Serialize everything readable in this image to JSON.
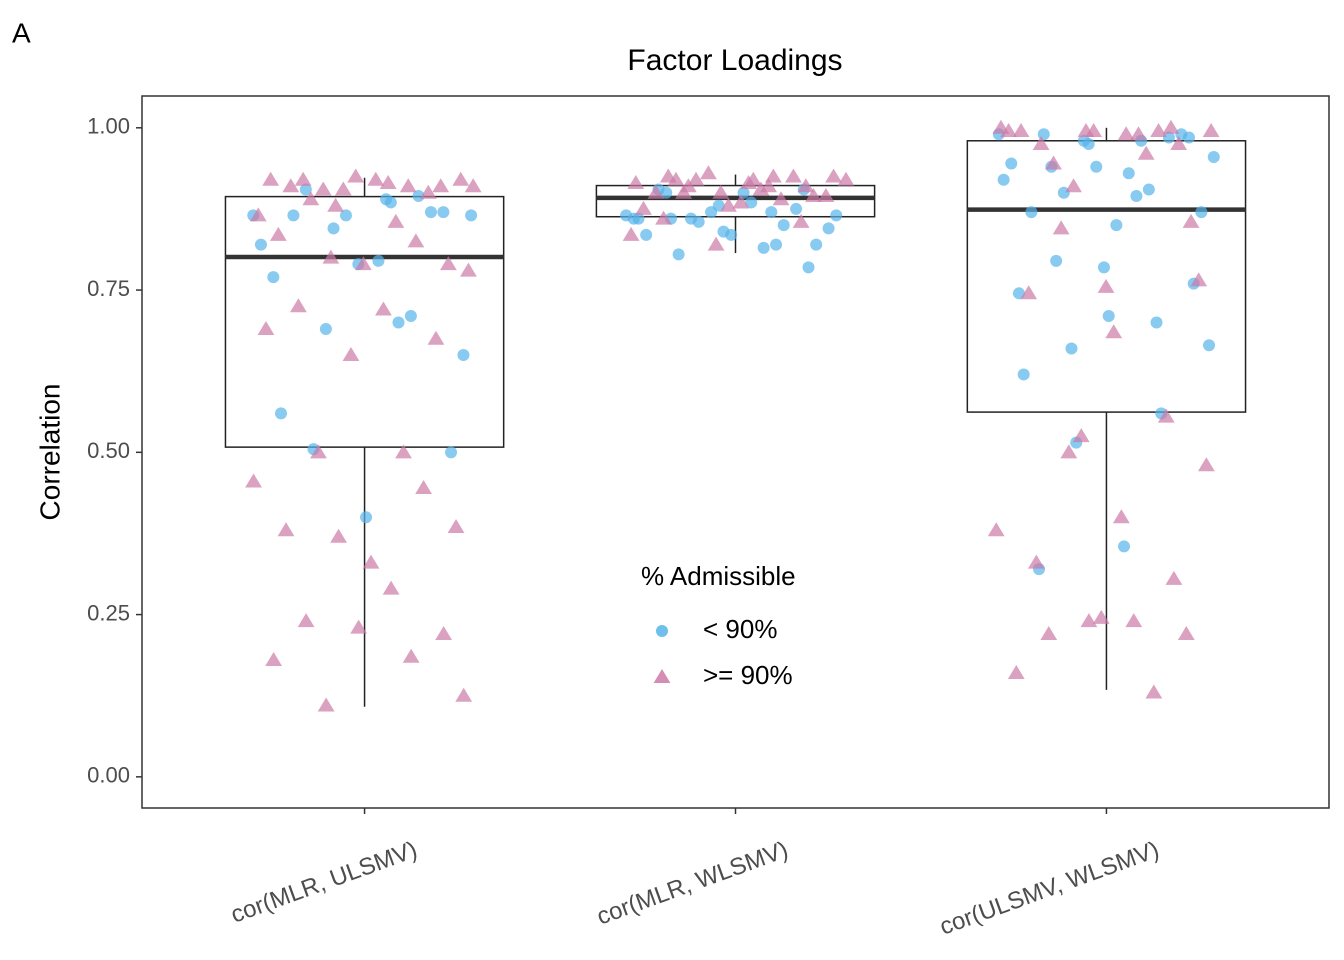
{
  "chart_data": {
    "type": "box",
    "panel_label": "A",
    "title": "Factor Loadings",
    "y_label": "Correlation",
    "categories": [
      "cor(MLR, ULSMV)",
      "cor(MLR, WLSMV)",
      "cor(ULSMV, WLSMV)"
    ],
    "ylim": [
      -0.048,
      1.049
    ],
    "yticks": [
      {
        "value": 0,
        "label": "0.00"
      },
      {
        "value": 0.25,
        "label": "0.25"
      },
      {
        "value": 0.5,
        "label": "0.50"
      },
      {
        "value": 0.75,
        "label": "0.75"
      },
      {
        "value": 1,
        "label": "1.00"
      }
    ],
    "grid": false,
    "boxes": [
      {
        "min": 0.108,
        "q1": 0.508,
        "median": 0.801,
        "q3": 0.894,
        "max": 0.923
      },
      {
        "min": 0.807,
        "q1": 0.863,
        "median": 0.892,
        "q3": 0.911,
        "max": 0.928
      },
      {
        "min": 0.134,
        "q1": 0.562,
        "median": 0.874,
        "q3": 0.98,
        "max": 1.0
      }
    ],
    "legend_title": "% Admissible",
    "series": [
      {
        "name": "< 90%",
        "color": "#56B4E9",
        "marker": "circle",
        "values": [
          [
            0.865,
            0.885,
            0.905,
            0.87,
            0.79,
            0.77,
            0.71,
            0.69,
            0.65,
            0.795,
            0.865,
            0.87,
            0.865,
            0.82,
            0.7,
            0.505,
            0.5,
            0.4,
            0.56,
            0.895,
            0.845,
            0.865,
            0.89
          ],
          [
            0.86,
            0.785,
            0.84,
            0.86,
            0.82,
            0.86,
            0.845,
            0.9,
            0.905,
            0.875,
            0.87,
            0.865,
            0.815,
            0.805,
            0.82,
            0.835,
            0.835,
            0.85,
            0.855,
            0.865,
            0.885,
            0.9,
            0.905,
            0.88,
            0.86,
            0.87
          ],
          [
            0.975,
            0.92,
            0.98,
            0.795,
            0.76,
            0.71,
            0.62,
            0.56,
            0.515,
            0.955,
            0.93,
            0.99,
            0.99,
            0.94,
            0.945,
            0.905,
            0.9,
            0.87,
            0.85,
            0.87,
            0.985,
            0.98,
            0.99,
            0.895,
            0.94,
            0.985,
            0.785,
            0.745,
            0.7,
            0.66,
            0.665,
            0.355,
            0.32
          ]
        ]
      },
      {
        "name": ">= 90%",
        "color": "#CC79A7",
        "marker": "triangle",
        "values": [
          [
            0.88,
            0.91,
            0.915,
            0.92,
            0.91,
            0.925,
            0.92,
            0.91,
            0.905,
            0.92,
            0.92,
            0.91,
            0.9,
            0.905,
            0.865,
            0.855,
            0.89,
            0.79,
            0.79,
            0.835,
            0.825,
            0.8,
            0.78,
            0.72,
            0.725,
            0.675,
            0.65,
            0.69,
            0.5,
            0.5,
            0.385,
            0.33,
            0.38,
            0.445,
            0.37,
            0.455,
            0.29,
            0.24,
            0.22,
            0.23,
            0.18,
            0.185,
            0.11,
            0.125
          ],
          [
            0.92,
            0.925,
            0.91,
            0.9,
            0.915,
            0.925,
            0.91,
            0.895,
            0.885,
            0.9,
            0.925,
            0.93,
            0.92,
            0.905,
            0.92,
            0.895,
            0.88,
            0.875,
            0.89,
            0.92,
            0.925,
            0.915,
            0.86,
            0.855,
            0.82,
            0.835,
            0.91,
            0.9
          ],
          [
            1.0,
            0.995,
            1.0,
            0.99,
            0.945,
            0.855,
            0.755,
            0.995,
            0.995,
            0.91,
            0.995,
            0.99,
            0.975,
            0.975,
            0.995,
            0.995,
            0.96,
            0.845,
            0.765,
            0.685,
            0.745,
            0.555,
            0.525,
            0.38,
            0.24,
            0.22,
            0.22,
            0.245,
            0.16,
            0.13,
            0.5,
            0.48,
            0.4,
            0.33,
            0.305,
            0.24
          ]
        ]
      }
    ]
  }
}
